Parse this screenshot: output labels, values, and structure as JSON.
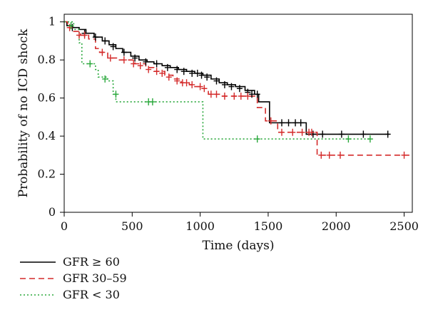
{
  "chart_data": {
    "type": "line",
    "step": true,
    "xlabel": "Time (days)",
    "ylabel": "Probability of no ICD shock",
    "xlim": [
      0,
      2560
    ],
    "ylim": [
      0,
      1.04
    ],
    "x_ticks": [
      {
        "value": 0,
        "label": "0"
      },
      {
        "value": 500,
        "label": "500"
      },
      {
        "value": 1000,
        "label": "1000"
      },
      {
        "value": 1500,
        "label": "1500"
      },
      {
        "value": 2000,
        "label": "2000"
      },
      {
        "value": 2500,
        "label": "2500"
      }
    ],
    "y_ticks": [
      {
        "value": 0,
        "label": "0"
      },
      {
        "value": 0.2,
        "label": "0.2"
      },
      {
        "value": 0.4,
        "label": "0.4"
      },
      {
        "value": 0.6,
        "label": "0.6"
      },
      {
        "value": 0.8,
        "label": "0.8"
      },
      {
        "value": 1,
        "label": "1"
      }
    ],
    "grid": false,
    "legend_position": "bottom-left",
    "series": [
      {
        "name": "GFR ≥ 60",
        "color": "#000000",
        "dash": "solid",
        "steps": [
          [
            0,
            1.0
          ],
          [
            20,
            0.98
          ],
          [
            60,
            0.97
          ],
          [
            110,
            0.96
          ],
          [
            160,
            0.94
          ],
          [
            220,
            0.92
          ],
          [
            280,
            0.9
          ],
          [
            330,
            0.88
          ],
          [
            380,
            0.86
          ],
          [
            430,
            0.84
          ],
          [
            490,
            0.82
          ],
          [
            550,
            0.8
          ],
          [
            610,
            0.79
          ],
          [
            660,
            0.78
          ],
          [
            720,
            0.77
          ],
          [
            780,
            0.76
          ],
          [
            840,
            0.75
          ],
          [
            900,
            0.74
          ],
          [
            960,
            0.73
          ],
          [
            1020,
            0.72
          ],
          [
            1080,
            0.7
          ],
          [
            1140,
            0.68
          ],
          [
            1200,
            0.67
          ],
          [
            1260,
            0.66
          ],
          [
            1330,
            0.64
          ],
          [
            1400,
            0.62
          ],
          [
            1430,
            0.58
          ],
          [
            1510,
            0.47
          ],
          [
            1780,
            0.41
          ],
          [
            2390,
            0.41
          ]
        ],
        "censored": [
          [
            60,
            0.97
          ],
          [
            150,
            0.94
          ],
          [
            230,
            0.92
          ],
          [
            300,
            0.9
          ],
          [
            360,
            0.87
          ],
          [
            440,
            0.84
          ],
          [
            520,
            0.81
          ],
          [
            600,
            0.79
          ],
          [
            680,
            0.78
          ],
          [
            760,
            0.76
          ],
          [
            830,
            0.75
          ],
          [
            880,
            0.74
          ],
          [
            940,
            0.73
          ],
          [
            980,
            0.73
          ],
          [
            1010,
            0.72
          ],
          [
            1050,
            0.71
          ],
          [
            1120,
            0.69
          ],
          [
            1180,
            0.67
          ],
          [
            1230,
            0.66
          ],
          [
            1290,
            0.65
          ],
          [
            1350,
            0.63
          ],
          [
            1380,
            0.62
          ],
          [
            1420,
            0.62
          ],
          [
            1600,
            0.47
          ],
          [
            1650,
            0.47
          ],
          [
            1700,
            0.47
          ],
          [
            1740,
            0.47
          ],
          [
            1830,
            0.41
          ],
          [
            1900,
            0.41
          ],
          [
            2040,
            0.41
          ],
          [
            2200,
            0.41
          ],
          [
            2380,
            0.41
          ]
        ]
      },
      {
        "name": "GFR 30–59",
        "color": "#d42a2a",
        "dash": "dashed",
        "steps": [
          [
            0,
            1.0
          ],
          [
            25,
            0.97
          ],
          [
            70,
            0.95
          ],
          [
            120,
            0.93
          ],
          [
            180,
            0.91
          ],
          [
            230,
            0.86
          ],
          [
            260,
            0.84
          ],
          [
            320,
            0.81
          ],
          [
            400,
            0.8
          ],
          [
            520,
            0.78
          ],
          [
            600,
            0.76
          ],
          [
            660,
            0.74
          ],
          [
            740,
            0.72
          ],
          [
            800,
            0.7
          ],
          [
            860,
            0.68
          ],
          [
            920,
            0.67
          ],
          [
            960,
            0.66
          ],
          [
            1000,
            0.65
          ],
          [
            1060,
            0.62
          ],
          [
            1150,
            0.61
          ],
          [
            1220,
            0.61
          ],
          [
            1300,
            0.61
          ],
          [
            1420,
            0.55
          ],
          [
            1480,
            0.48
          ],
          [
            1570,
            0.42
          ],
          [
            1860,
            0.3
          ],
          [
            2560,
            0.3
          ]
        ],
        "censored": [
          [
            40,
            0.97
          ],
          [
            110,
            0.93
          ],
          [
            150,
            0.93
          ],
          [
            280,
            0.84
          ],
          [
            340,
            0.81
          ],
          [
            440,
            0.8
          ],
          [
            510,
            0.78
          ],
          [
            560,
            0.77
          ],
          [
            620,
            0.75
          ],
          [
            680,
            0.74
          ],
          [
            720,
            0.73
          ],
          [
            770,
            0.71
          ],
          [
            830,
            0.69
          ],
          [
            870,
            0.68
          ],
          [
            900,
            0.68
          ],
          [
            940,
            0.67
          ],
          [
            1000,
            0.66
          ],
          [
            1030,
            0.65
          ],
          [
            1080,
            0.62
          ],
          [
            1120,
            0.62
          ],
          [
            1180,
            0.61
          ],
          [
            1250,
            0.61
          ],
          [
            1300,
            0.61
          ],
          [
            1350,
            0.61
          ],
          [
            1520,
            0.48
          ],
          [
            1600,
            0.42
          ],
          [
            1680,
            0.42
          ],
          [
            1750,
            0.42
          ],
          [
            1800,
            0.42
          ],
          [
            1820,
            0.42
          ],
          [
            1890,
            0.3
          ],
          [
            1950,
            0.3
          ],
          [
            2030,
            0.3
          ],
          [
            2500,
            0.3
          ]
        ]
      },
      {
        "name": "GFR < 30",
        "color": "#2aa83c",
        "dash": "dotted",
        "steps": [
          [
            0,
            1.0
          ],
          [
            70,
            0.96
          ],
          [
            110,
            0.89
          ],
          [
            130,
            0.78
          ],
          [
            230,
            0.75
          ],
          [
            250,
            0.71
          ],
          [
            320,
            0.69
          ],
          [
            360,
            0.62
          ],
          [
            380,
            0.58
          ],
          [
            1010,
            0.58
          ],
          [
            1020,
            0.385
          ],
          [
            2260,
            0.385
          ]
        ],
        "censored": [
          [
            50,
            0.98
          ],
          [
            190,
            0.78
          ],
          [
            300,
            0.7
          ],
          [
            380,
            0.62
          ],
          [
            620,
            0.58
          ],
          [
            650,
            0.58
          ],
          [
            1420,
            0.385
          ],
          [
            2090,
            0.385
          ],
          [
            2250,
            0.385
          ]
        ]
      }
    ]
  }
}
